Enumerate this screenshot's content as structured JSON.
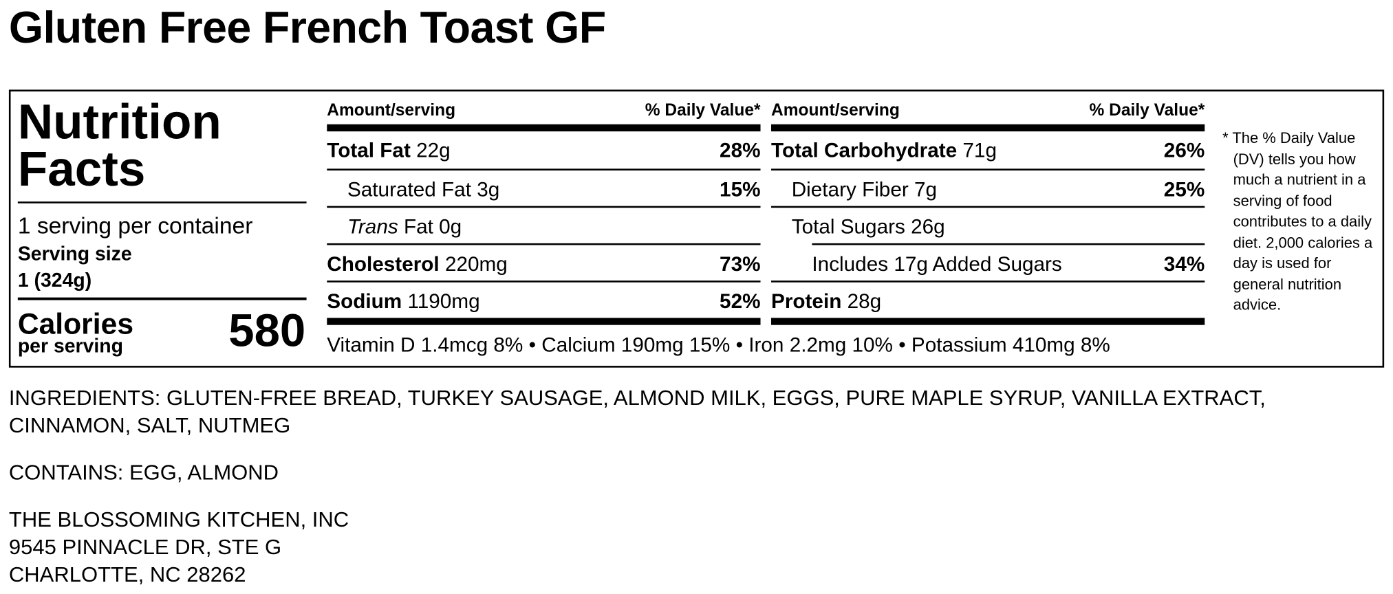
{
  "title": "Gluten Free French Toast GF",
  "label": {
    "heading": "Nutrition Facts",
    "servings": "1 serving per container",
    "serving_size_label": "Serving size",
    "serving_size": "1 (324g)",
    "calories_label": "Calories",
    "calories_sub": "per serving",
    "calories": "580",
    "columns": [
      {
        "header_amount": "Amount/serving",
        "header_dv": "% Daily Value*",
        "rows": [
          {
            "name": "Total Fat",
            "amount": "22g",
            "dv": "28%",
            "bold": true,
            "indent": 0
          },
          {
            "name": "Saturated Fat",
            "amount": "3g",
            "dv": "15%",
            "bold": false,
            "indent": 1
          },
          {
            "name_italic": "Trans",
            "name": "Fat",
            "amount": "0g",
            "bold": false,
            "indent": 1
          },
          {
            "name": "Cholesterol",
            "amount": "220mg",
            "dv": "73%",
            "bold": true,
            "indent": 0
          },
          {
            "name": "Sodium",
            "amount": "1190mg",
            "dv": "52%",
            "bold": true,
            "indent": 0
          }
        ]
      },
      {
        "header_amount": "Amount/serving",
        "header_dv": "% Daily Value*",
        "rows": [
          {
            "name": "Total Carbohydrate",
            "amount": "71g",
            "dv": "26%",
            "bold": true,
            "indent": 0
          },
          {
            "name": "Dietary Fiber",
            "amount": "7g",
            "dv": "25%",
            "bold": false,
            "indent": 1
          },
          {
            "name": "Total Sugars",
            "amount": "26g",
            "bold": false,
            "indent": 1
          },
          {
            "name": "Includes 17g Added Sugars",
            "dv": "34%",
            "bold": false,
            "indent": 2
          },
          {
            "name": "Protein",
            "amount": "28g",
            "bold": true,
            "indent": 0
          }
        ]
      }
    ],
    "vitamins": [
      "Vitamin D 1.4mcg 8%",
      "Calcium 190mg 15%",
      "Iron 2.2mg 10%",
      "Potassium 410mg 8%"
    ],
    "separator": "•",
    "footnote": "* The % Daily Value (DV) tells you how much a nutrient in a serving of food contributes to a daily diet. 2,000 calories a day is used for general nutrition advice."
  },
  "ingredients": "INGREDIENTS: GLUTEN-FREE BREAD, TURKEY SAUSAGE, ALMOND MILK, EGGS, PURE MAPLE SYRUP, VANILLA EXTRACT, CINNAMON, SALT, NUTMEG",
  "contains": "CONTAINS: EGG, ALMOND",
  "address": [
    "THE BLOSSOMING KITCHEN, INC",
    "9545 PINNACLE DR, STE G",
    "CHARLOTTE, NC 28262"
  ]
}
